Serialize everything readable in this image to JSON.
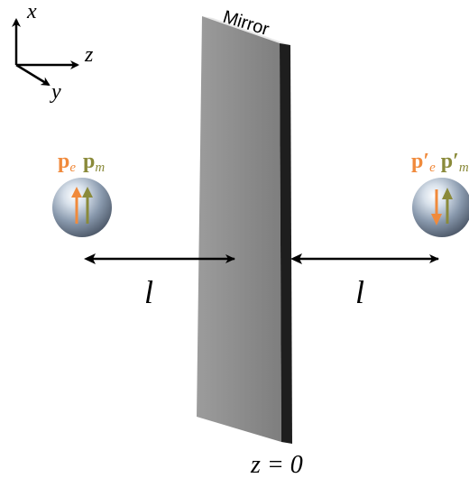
{
  "axes": {
    "x_label": "x",
    "z_label": "z",
    "y_label": "y"
  },
  "mirror": {
    "label": "Mirror",
    "position_label": "z = 0"
  },
  "left_dipole": {
    "electric_symbol": "p",
    "electric_subscript": "e",
    "magnetic_symbol": "p",
    "magnetic_subscript": "m"
  },
  "right_dipole": {
    "electric_symbol": "p′",
    "electric_subscript": "e",
    "magnetic_symbol": "p′",
    "magnetic_subscript": "m"
  },
  "distances": {
    "left_label": "l",
    "right_label": "l"
  },
  "colors": {
    "electric": "#f08a3c",
    "magnetic": "#8a8a3a",
    "mirror_face": "#8f8f8f",
    "mirror_side": "#1e1e1e",
    "arrow": "#000000"
  }
}
